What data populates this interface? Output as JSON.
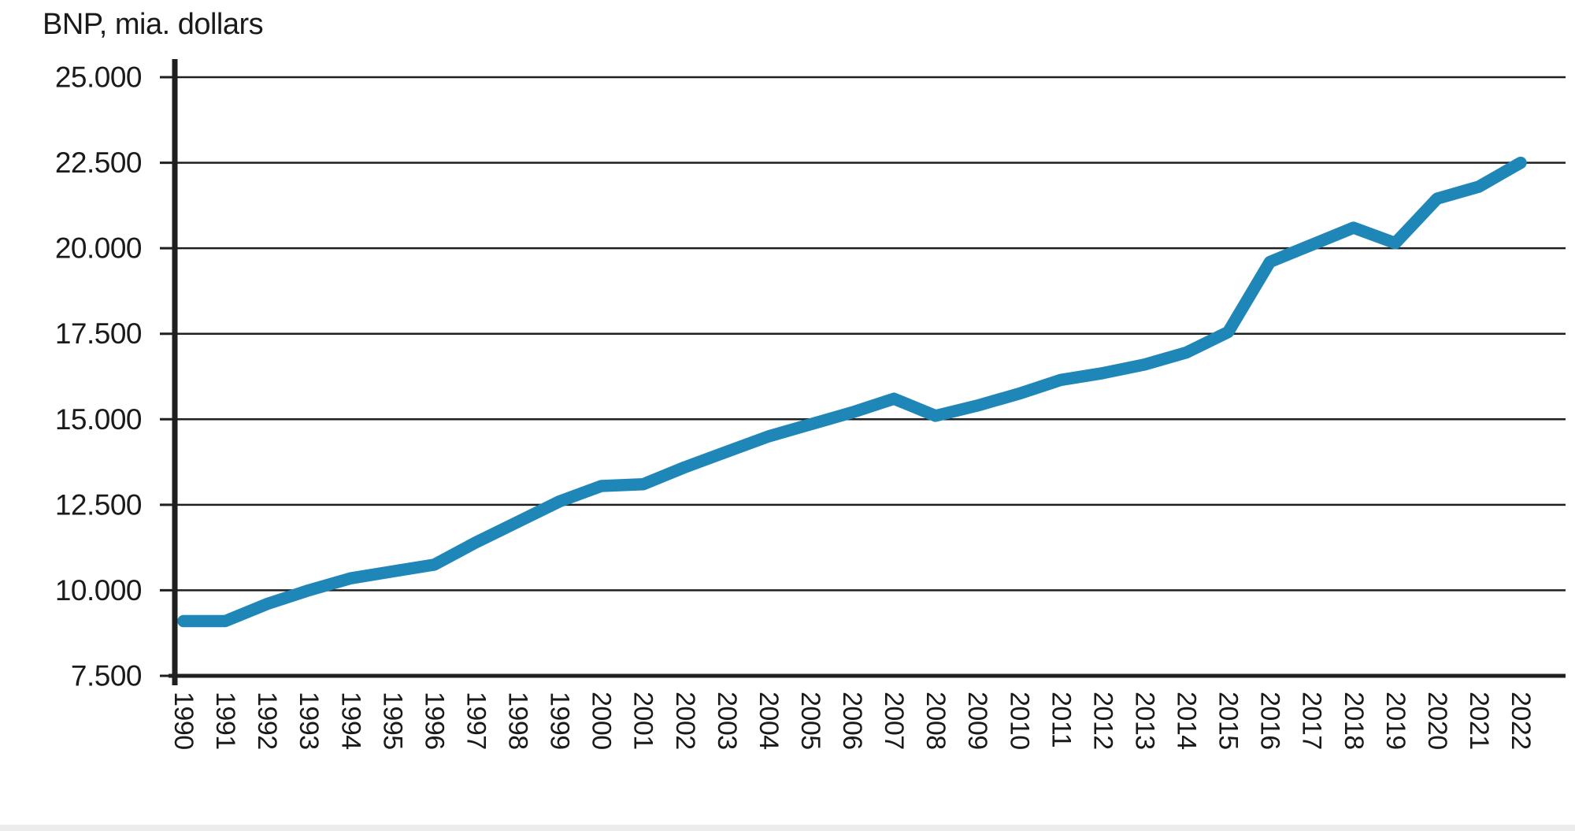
{
  "title": "BNP, mia. dollars",
  "colors": {
    "line": "#1e87b8",
    "grid": "#1f1f1f",
    "axis": "#1f1f1f",
    "text": "#1a1a1a",
    "background": "#ffffff"
  },
  "chart_data": {
    "type": "line",
    "title": "BNP, mia. dollars",
    "ylabel": "BNP, mia. dollars",
    "xlabel": "",
    "x": [
      1990,
      1991,
      1992,
      1993,
      1994,
      1995,
      1996,
      1997,
      1998,
      1999,
      2000,
      2001,
      2002,
      2003,
      2004,
      2005,
      2006,
      2007,
      2008,
      2009,
      2010,
      2011,
      2012,
      2013,
      2014,
      2015,
      2016,
      2017,
      2018,
      2019,
      2020,
      2021,
      2022
    ],
    "x_tick_labels": [
      "1990",
      "1991",
      "1992",
      "1993",
      "1994",
      "1995",
      "1996",
      "1997",
      "1998",
      "1999",
      "2000",
      "2001",
      "2002",
      "2003",
      "2004",
      "2005",
      "2006",
      "2007",
      "2008",
      "2009",
      "2010",
      "2011",
      "2012",
      "2013",
      "2014",
      "2015",
      "2016",
      "2017",
      "2018",
      "2019",
      "2020",
      "2021",
      "2022"
    ],
    "series": [
      {
        "name": "BNP, mia. dollars",
        "values": [
          9100,
          9100,
          9600,
          10000,
          10350,
          10550,
          10750,
          11400,
          12000,
          12600,
          13050,
          13100,
          13600,
          14050,
          14500,
          14850,
          15200,
          15600,
          15100,
          15400,
          15750,
          16150,
          16350,
          16600,
          16950,
          17550,
          19600,
          20100,
          20600,
          20150,
          21450,
          21800,
          22500
        ]
      }
    ],
    "y_ticks": [
      25000,
      22500,
      20000,
      17500,
      15000,
      12500,
      10000,
      7500
    ],
    "y_tick_labels": [
      "25.000",
      "22.500",
      "20.000",
      "17.500",
      "15.000",
      "12.500",
      "10.000",
      "7.500"
    ],
    "ylim": [
      7500,
      25000
    ],
    "grid": "horizontal",
    "legend": "none"
  }
}
